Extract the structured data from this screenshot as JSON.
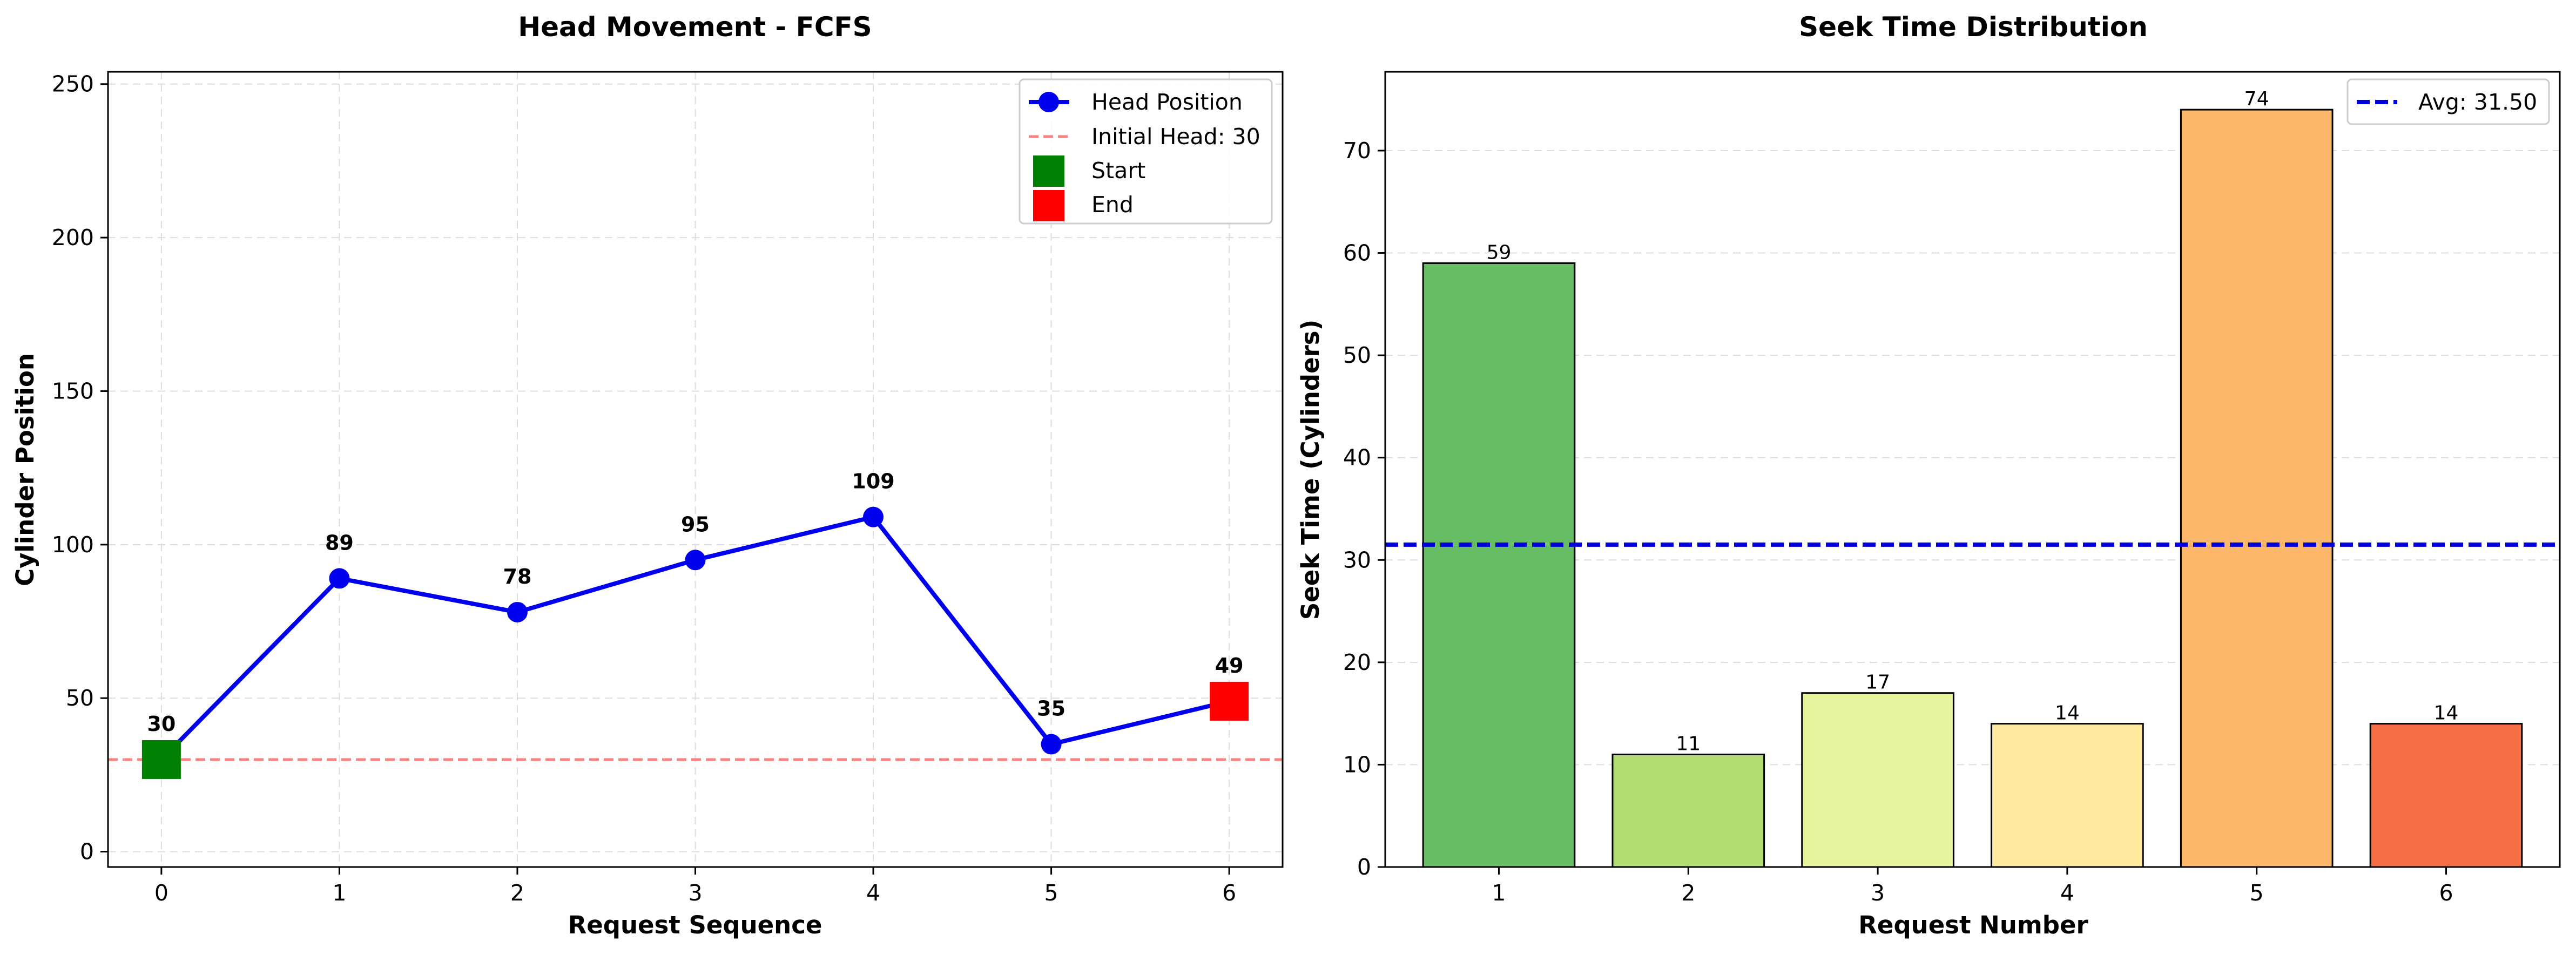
{
  "charts": {
    "left": {
      "title": "Head Movement - FCFS",
      "xlabel": "Request Sequence",
      "ylabel": "Cylinder Position",
      "legend": {
        "position": "top-right",
        "head": "Head Position",
        "initial": "Initial Head: 30",
        "start": "Start",
        "end": "End"
      }
    },
    "right": {
      "title": "Seek Time Distribution",
      "xlabel": "Request Number",
      "ylabel": "Seek Time (Cylinders)",
      "legend": {
        "position": "top-right",
        "avg": "Avg: 31.50"
      }
    }
  },
  "colors": {
    "line": "#0000ee",
    "initial_line": "#ff7f7f",
    "start_marker": "#008000",
    "end_marker": "#ff0000",
    "avg_line": "#0000dd",
    "grid": "#dddddd",
    "bars": [
      "#66bd63",
      "#b2dd72",
      "#e6f49b",
      "#fee99c",
      "#fdb76a",
      "#f46d43"
    ]
  },
  "chart_data": [
    {
      "type": "line",
      "title": "Head Movement - FCFS",
      "xlabel": "Request Sequence",
      "ylabel": "Cylinder Position",
      "x": [
        0,
        1,
        2,
        3,
        4,
        5,
        6
      ],
      "series": [
        {
          "name": "Head Position",
          "values": [
            30,
            89,
            78,
            95,
            109,
            35,
            49
          ]
        }
      ],
      "data_labels": [
        "30",
        "89",
        "78",
        "95",
        "109",
        "35",
        "49"
      ],
      "reference_line": {
        "name": "Initial Head: 30",
        "y": 30
      },
      "markers": [
        {
          "name": "Start",
          "x": 0,
          "y": 30
        },
        {
          "name": "End",
          "x": 6,
          "y": 49
        }
      ],
      "xticks": [
        "0",
        "1",
        "2",
        "3",
        "4",
        "5",
        "6"
      ],
      "yticks": [
        "0",
        "50",
        "100",
        "150",
        "200",
        "250"
      ],
      "xlim": [
        -0.3,
        6.3
      ],
      "ylim": [
        -5,
        254
      ],
      "grid": true,
      "legend": "top-right"
    },
    {
      "type": "bar",
      "title": "Seek Time Distribution",
      "xlabel": "Request Number",
      "ylabel": "Seek Time (Cylinders)",
      "categories": [
        "1",
        "2",
        "3",
        "4",
        "5",
        "6"
      ],
      "values": [
        59,
        11,
        17,
        14,
        74,
        14
      ],
      "data_labels": [
        "59",
        "11",
        "17",
        "14",
        "74",
        "14"
      ],
      "average_line": {
        "name": "Avg: 31.50",
        "y": 31.5
      },
      "yticks": [
        "0",
        "10",
        "20",
        "30",
        "40",
        "50",
        "60",
        "70"
      ],
      "ylim": [
        0,
        77.7
      ],
      "grid": true,
      "legend": "top-right"
    }
  ]
}
